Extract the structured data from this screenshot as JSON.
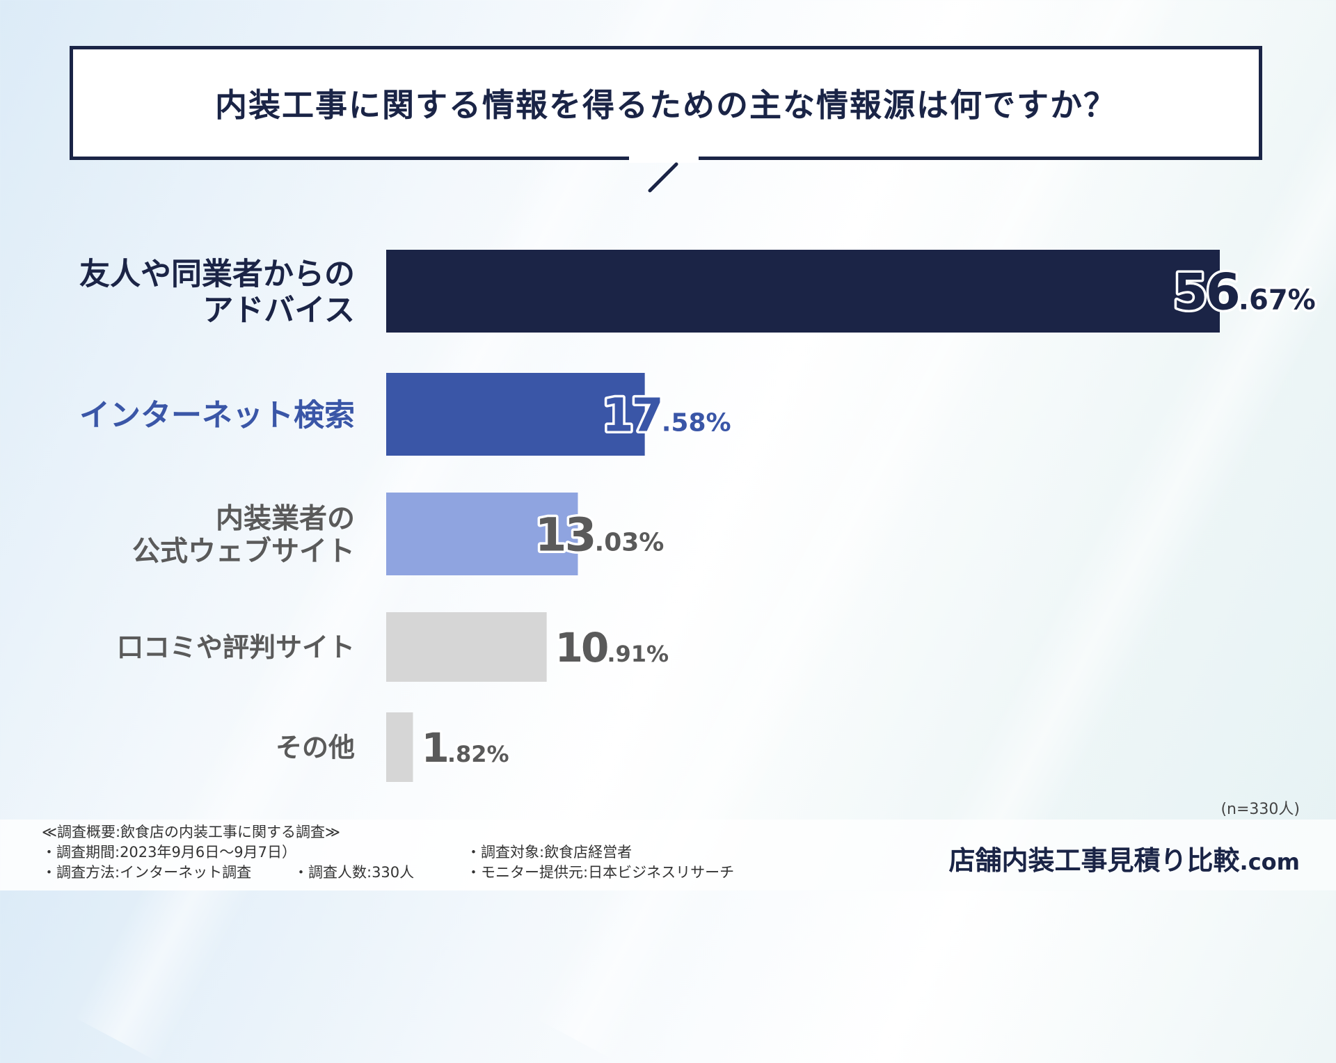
{
  "chart_data": {
    "type": "bar",
    "orientation": "horizontal",
    "title": "内装工事に関する情報を得るための主な情報源は何ですか？",
    "categories": [
      [
        "友人や同業者からの",
        "アドバイス"
      ],
      [
        "インターネット検索"
      ],
      [
        "内装業者の",
        "公式ウェブサイト"
      ],
      [
        "口コミや評判サイト"
      ],
      [
        "その他"
      ]
    ],
    "values": [
      56.67,
      17.58,
      13.03,
      10.91,
      1.82
    ],
    "value_labels": [
      {
        "int": "56",
        "dec": ".67%"
      },
      {
        "int": "17",
        "dec": ".58%"
      },
      {
        "int": "13",
        "dec": ".03%"
      },
      {
        "int": "10",
        "dec": ".91%"
      },
      {
        "int": "1",
        "dec": ".82%"
      }
    ],
    "xlim": [
      0,
      56.67
    ],
    "bar_colors": [
      "#1b2446",
      "#3a56a7",
      "#8fa4e0",
      "#d6d6d6",
      "#d6d6d6"
    ],
    "label_colors": [
      "#1b2446",
      "#3a56a7",
      "#5a5a5a",
      "#5a5a5a",
      "#5a5a5a"
    ],
    "grid": false,
    "legend": "none"
  },
  "sample_note": "(n=330人)",
  "footnote": {
    "heading": "≪調査概要:飲食店の内装工事に関する調査≫",
    "items": [
      "・調査期間:2023年9月6日〜9月7日）",
      "・調査対象:飲食店経営者",
      "・調査方法:インターネット調査",
      "・調査人数:330人",
      "・モニター提供元:日本ビジネスリサーチ"
    ]
  },
  "brand": {
    "name": "店舗内装工事見積り比較",
    "suffix": ".com"
  }
}
